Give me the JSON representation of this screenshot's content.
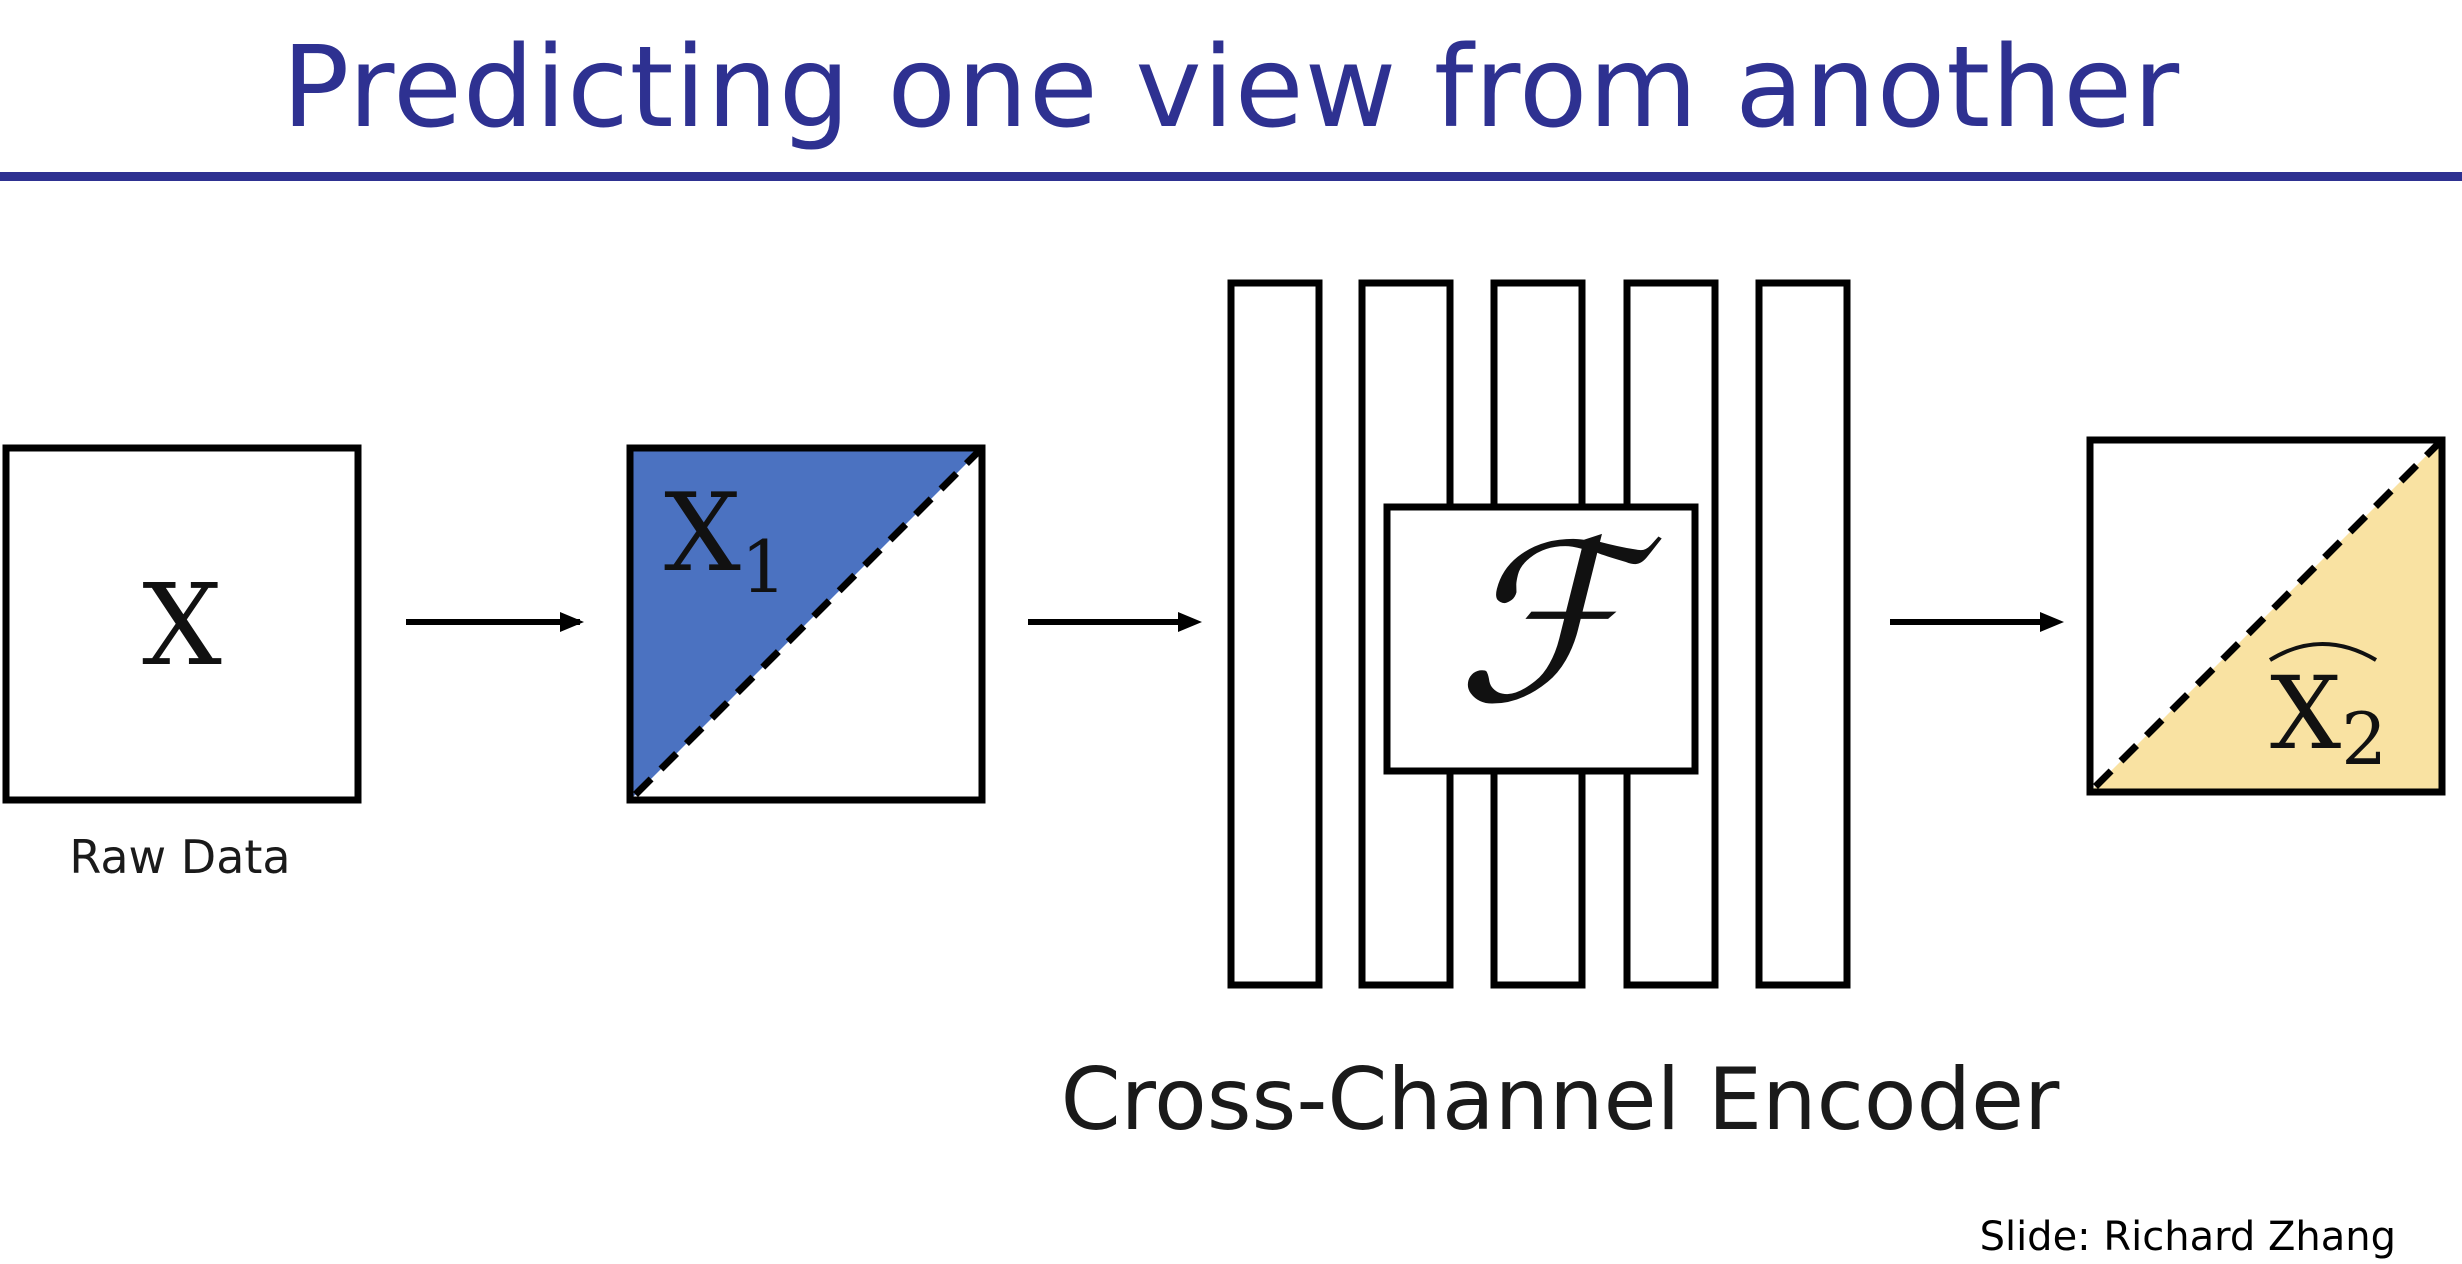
{
  "slide": {
    "title": "Predicting one view from another",
    "credit": "Slide: Richard Zhang"
  },
  "nodes": {
    "raw": {
      "symbol": "X",
      "caption": "Raw Data"
    },
    "view1": {
      "symbol": "X",
      "subscript": "1",
      "fill_color": "#4b72c1"
    },
    "encoder": {
      "symbol": "ℱ",
      "caption": "Cross-Channel Encoder",
      "layer_count": 5
    },
    "view2": {
      "symbol": "X",
      "subscript": "2",
      "fill_color": "#f9e2a2"
    }
  },
  "colors": {
    "title": "#2e3191",
    "rule": "#2e3191",
    "stroke": "#000000"
  }
}
